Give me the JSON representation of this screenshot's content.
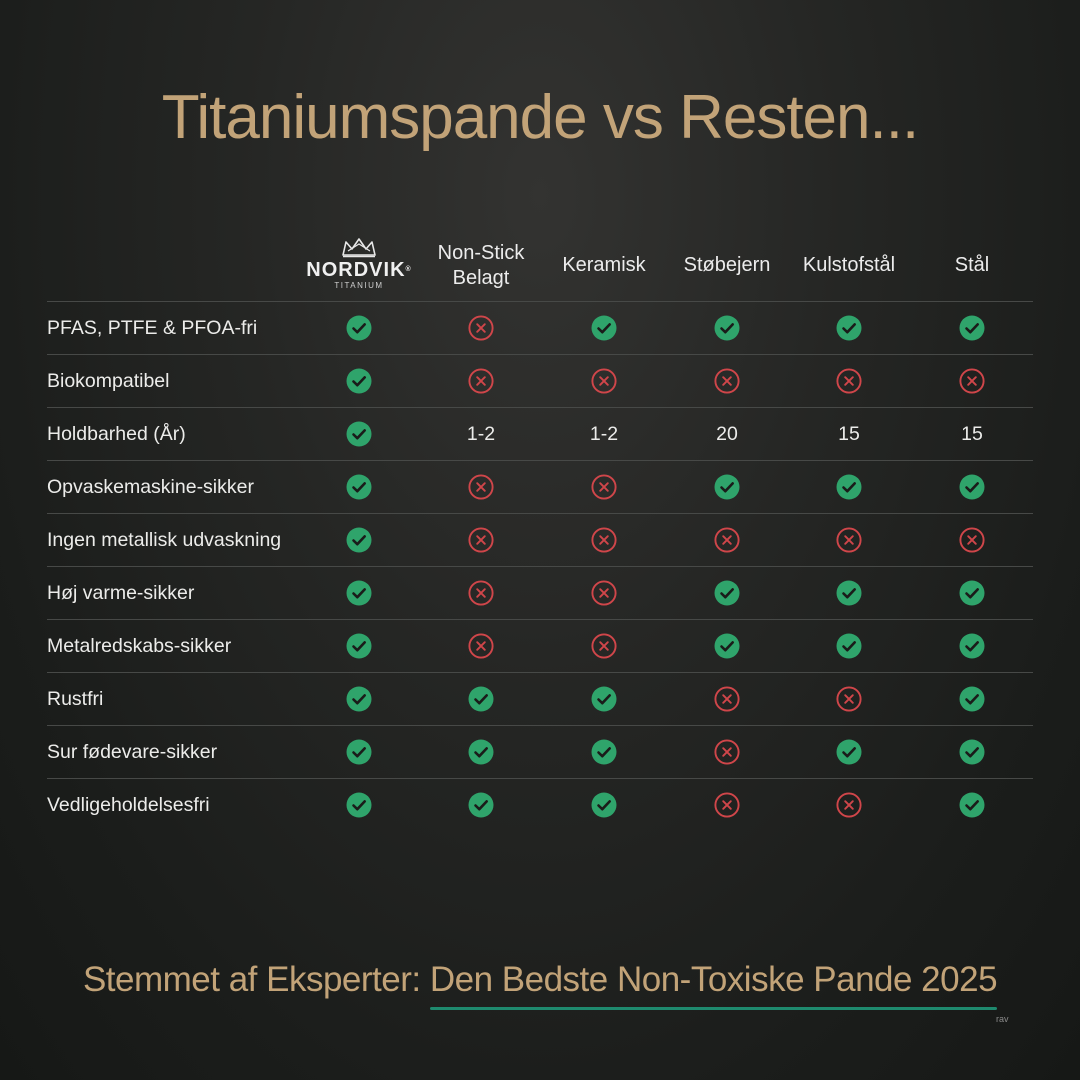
{
  "title": "Titaniumspande vs Resten...",
  "brand": {
    "name": "NORDVIK",
    "registered": "®",
    "sub": "TITANIUM"
  },
  "columns": [
    {
      "lines": [
        "Non-Stick",
        "Belagt"
      ]
    },
    {
      "lines": [
        "Keramisk"
      ]
    },
    {
      "lines": [
        "Støbejern"
      ]
    },
    {
      "lines": [
        "Kulstofstål"
      ]
    },
    {
      "lines": [
        "Stål"
      ]
    }
  ],
  "rows": [
    {
      "label": "PFAS, PTFE & PFOA-fri",
      "cells": [
        "check",
        "cross",
        "check",
        "check",
        "check",
        "check"
      ]
    },
    {
      "label": "Biokompatibel",
      "cells": [
        "check",
        "cross",
        "cross",
        "cross",
        "cross",
        "cross"
      ]
    },
    {
      "label": "Holdbarhed (År)",
      "cells": [
        "check",
        "1-2",
        "1-2",
        "20",
        "15",
        "15"
      ]
    },
    {
      "label": "Opvaskemaskine-sikker",
      "cells": [
        "check",
        "cross",
        "cross",
        "check",
        "check",
        "check"
      ]
    },
    {
      "label": "Ingen metallisk udvaskning",
      "cells": [
        "check",
        "cross",
        "cross",
        "cross",
        "cross",
        "cross"
      ]
    },
    {
      "label": "Høj varme-sikker",
      "cells": [
        "check",
        "cross",
        "cross",
        "check",
        "check",
        "check"
      ]
    },
    {
      "label": "Metalredskabs-sikker",
      "cells": [
        "check",
        "cross",
        "cross",
        "check",
        "check",
        "check"
      ]
    },
    {
      "label": "Rustfri",
      "cells": [
        "check",
        "check",
        "check",
        "cross",
        "cross",
        "check"
      ]
    },
    {
      "label": "Sur fødevare-sikker",
      "cells": [
        "check",
        "check",
        "check",
        "cross",
        "check",
        "check"
      ]
    },
    {
      "label": "Vedligeholdelsesfri",
      "cells": [
        "check",
        "check",
        "check",
        "cross",
        "cross",
        "check"
      ]
    }
  ],
  "footer": {
    "prefix": "Stemmet af Eksperter: ",
    "highlight": "Den Bedste Non-Toxiske Pande 2025"
  },
  "watermark": "rav",
  "colors": {
    "title": "#c2a378",
    "check": "#2fa46b",
    "cross": "#d0464a",
    "underline": "#1e8a6e"
  },
  "icons": {
    "yes": "check-circle-icon",
    "no": "x-circle-icon",
    "brand": "crown-icon"
  }
}
